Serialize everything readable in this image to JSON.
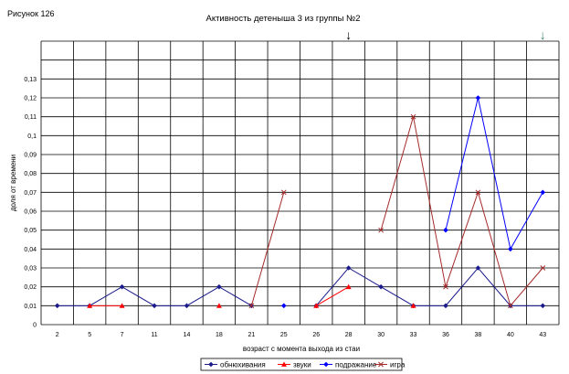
{
  "figure_label": "Рисунок 126",
  "chart_data": {
    "type": "line",
    "title": "Активность детеныша 3 из группы №2",
    "xlabel": "возраст с момента выхода из стаи",
    "ylabel": "доля от времени",
    "ylim": [
      0,
      0.15
    ],
    "yticks": [
      "0",
      "0,01",
      "0,02",
      "0,03",
      "0,04",
      "0,05",
      "0,06",
      "0,07",
      "0,08",
      "0,09",
      "0,1",
      "0,11",
      "0,12",
      "0,13"
    ],
    "categories": [
      "2",
      "5",
      "7",
      "11",
      "14",
      "18",
      "21",
      "25",
      "26",
      "28",
      "30",
      "33",
      "36",
      "38",
      "40",
      "43"
    ],
    "grid": true,
    "legend_position": "bottom",
    "markers": [
      {
        "category_index": 9,
        "color": "#000000",
        "symbol": "↓"
      },
      {
        "category_index": 15,
        "color": "#3a8a6a",
        "symbol": "↓"
      }
    ],
    "series": [
      {
        "name": "обнюхивания",
        "color": "#1a1a8c",
        "marker": "diamond",
        "values": [
          0.01,
          0.01,
          0.02,
          0.01,
          0.01,
          0.02,
          0.01,
          null,
          0.01,
          0.03,
          0.02,
          0.01,
          0.01,
          0.03,
          0.01,
          0.01
        ]
      },
      {
        "name": "звуки",
        "color": "#ff0000",
        "marker": "triangle",
        "values": [
          null,
          0.01,
          0.01,
          null,
          null,
          0.01,
          null,
          null,
          0.01,
          0.02,
          null,
          0.01,
          null,
          null,
          null,
          null
        ]
      },
      {
        "name": "подражание",
        "color": "#0000ff",
        "marker": "diamond",
        "values": [
          null,
          null,
          null,
          null,
          null,
          null,
          null,
          0.01,
          null,
          null,
          null,
          null,
          0.05,
          0.12,
          0.04,
          0.07
        ]
      },
      {
        "name": "игра",
        "color": "#a52a2a",
        "marker": "cross",
        "values": [
          null,
          null,
          null,
          null,
          null,
          null,
          0.01,
          0.07,
          null,
          null,
          0.05,
          0.11,
          0.02,
          0.07,
          0.01,
          0.03
        ]
      }
    ]
  }
}
